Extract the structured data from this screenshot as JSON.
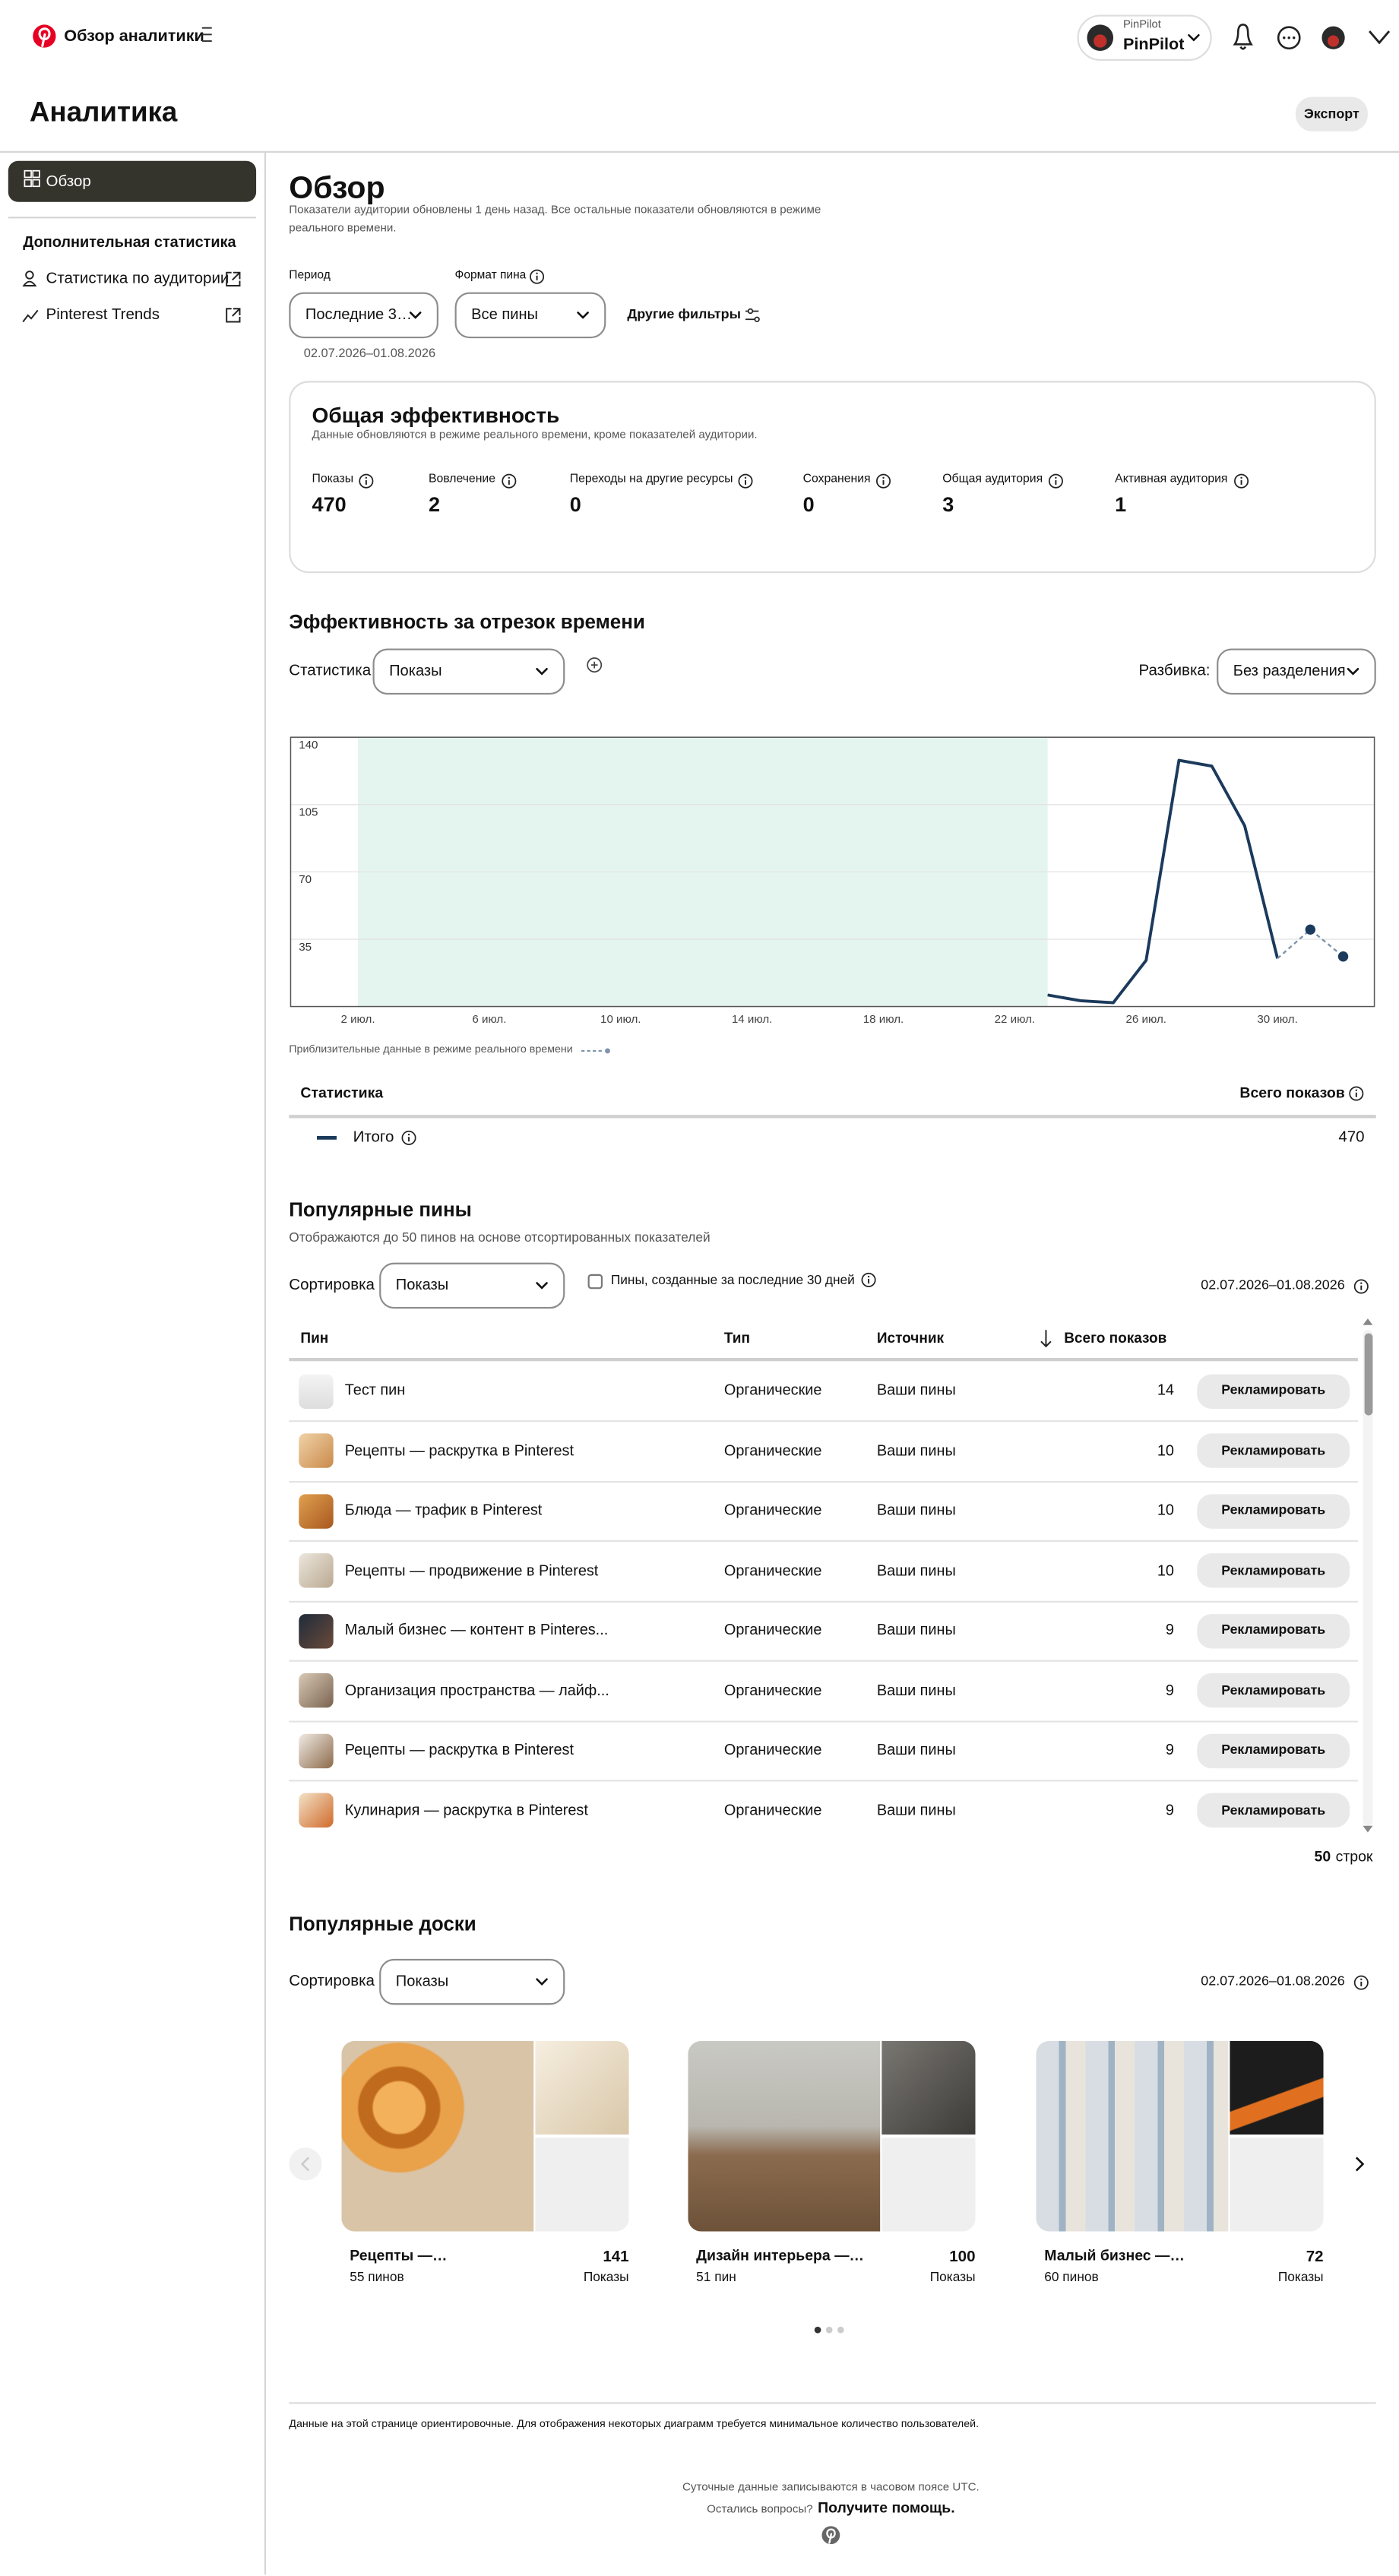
{
  "header": {
    "title": "Обзор аналитики",
    "account_label": "PinPilot",
    "account_name": "PinPilot"
  },
  "page": {
    "title": "Аналитика",
    "export": "Экспорт"
  },
  "sidebar": {
    "active": "Обзор",
    "section": "Дополнительная статистика",
    "links": [
      "Статистика по аудитории",
      "Pinterest Trends"
    ]
  },
  "overview": {
    "title": "Обзор",
    "subtitle_lines": [
      "Показатели аудитории обновлены 1 день назад. Все остальные показатели обновляются в режиме",
      "реального времени."
    ],
    "period_label": "Период",
    "period_value": "Последние 3…",
    "format_label": "Формат пина",
    "format_value": "Все пины",
    "more_filters": "Другие фильтры",
    "date_range": "02.07.2026–01.08.2026"
  },
  "performance": {
    "title": "Общая эффективность",
    "subtitle": "Данные обновляются в режиме реального времени, кроме показателей аудитории.",
    "metrics": [
      {
        "label": "Показы",
        "value": 470
      },
      {
        "label": "Вовлечение",
        "value": 2
      },
      {
        "label": "Переходы на другие ресурсы",
        "value": 0
      },
      {
        "label": "Сохранения",
        "value": 0
      },
      {
        "label": "Общая аудитория",
        "value": 3
      },
      {
        "label": "Активная аудитория",
        "value": 1
      }
    ]
  },
  "time_chart": {
    "title": "Эффективность за отрезок времени",
    "stat_label": "Статистика",
    "stat_value": "Показы",
    "split_label": "Разбивка:",
    "split_value": "Без разделения",
    "note": "Приблизительные данные в режиме реального времени"
  },
  "chart_data": {
    "type": "line",
    "categories": [
      "2 июл.",
      null,
      null,
      null,
      "6 июл.",
      null,
      null,
      null,
      "10 июл.",
      null,
      null,
      null,
      "14 июл.",
      null,
      null,
      null,
      "18 июл.",
      null,
      null,
      null,
      "22 июл.",
      null,
      null,
      null,
      "26 июл.",
      null,
      null,
      null,
      "30 июл.",
      null,
      null
    ],
    "values": [
      null,
      null,
      null,
      null,
      null,
      null,
      null,
      null,
      null,
      null,
      null,
      null,
      null,
      null,
      null,
      null,
      null,
      null,
      null,
      null,
      null,
      6,
      3,
      2,
      24,
      128,
      125,
      94,
      25,
      40,
      26
    ],
    "color": "#1b3a5c",
    "estimate_color": "#7f93ab",
    "estimated_points": 2,
    "no_data_color": "#e4f4ee",
    "ylim": [
      0,
      140
    ],
    "yticks": [
      35,
      70,
      105,
      140
    ],
    "grid": true
  },
  "stats_table": {
    "columns": [
      "Статистика",
      "Всего показов"
    ],
    "rows": [
      {
        "name": "Итого",
        "value": 470
      }
    ]
  },
  "top_pins": {
    "title": "Популярные пины",
    "subtitle": "Отображаются до 50 пинов на основе отсортированных показателей",
    "sort_label": "Сортировка",
    "sort_value": "Показы",
    "checkbox": "Пины, созданные за последние 30 дней",
    "date_range": "02.07.2026–01.08.2026",
    "columns": [
      "Пин",
      "Тип",
      "Источник",
      "Всего показов"
    ],
    "rows": [
      {
        "pin": "Тест пин",
        "type": "Органические",
        "source": "Ваши пины",
        "impressions": 14,
        "action": "Рекламировать"
      },
      {
        "pin": "Рецепты — раскрутка в Pinterest",
        "type": "Органические",
        "source": "Ваши пины",
        "impressions": 10,
        "action": "Рекламировать"
      },
      {
        "pin": "Блюда — трафик в Pinterest",
        "type": "Органические",
        "source": "Ваши пины",
        "impressions": 10,
        "action": "Рекламировать"
      },
      {
        "pin": "Рецепты — продвижение в Pinterest",
        "type": "Органические",
        "source": "Ваши пины",
        "impressions": 10,
        "action": "Рекламировать"
      },
      {
        "pin": "Малый бизнес — контент в Pinteres...",
        "type": "Органические",
        "source": "Ваши пины",
        "impressions": 9,
        "action": "Рекламировать"
      },
      {
        "pin": "Организация пространства — лайф...",
        "type": "Органические",
        "source": "Ваши пины",
        "impressions": 9,
        "action": "Рекламировать"
      },
      {
        "pin": "Рецепты — раскрутка в Pinterest",
        "type": "Органические",
        "source": "Ваши пины",
        "impressions": 9,
        "action": "Рекламировать"
      },
      {
        "pin": "Кулинария — раскрутка в Pinterest",
        "type": "Органические",
        "source": "Ваши пины",
        "impressions": 9,
        "action": "Рекламировать"
      }
    ],
    "row_count": 50,
    "row_count_unit": "строк"
  },
  "top_boards": {
    "title": "Популярные доски",
    "sort_label": "Сортировка",
    "sort_value": "Показы",
    "date_range": "02.07.2026–01.08.2026",
    "boards": [
      {
        "name": "Рецепты —…",
        "pins": "55 пинов",
        "value": 141,
        "metric": "Показы"
      },
      {
        "name": "Дизайн интерьера —…",
        "pins": "51 пин",
        "value": 100,
        "metric": "Показы"
      },
      {
        "name": "Малый бизнес —…",
        "pins": "60 пинов",
        "value": 72,
        "metric": "Показы"
      }
    ]
  },
  "footer": {
    "disclaimer": "Данные на этой странице ориентировочные. Для отображения некоторых диаграмм требуется минимальное количество пользователей.",
    "timezone": "Суточные данные записываются в часовом поясе UTC.",
    "question": "Остались вопросы?",
    "help": "Получите помощь."
  }
}
